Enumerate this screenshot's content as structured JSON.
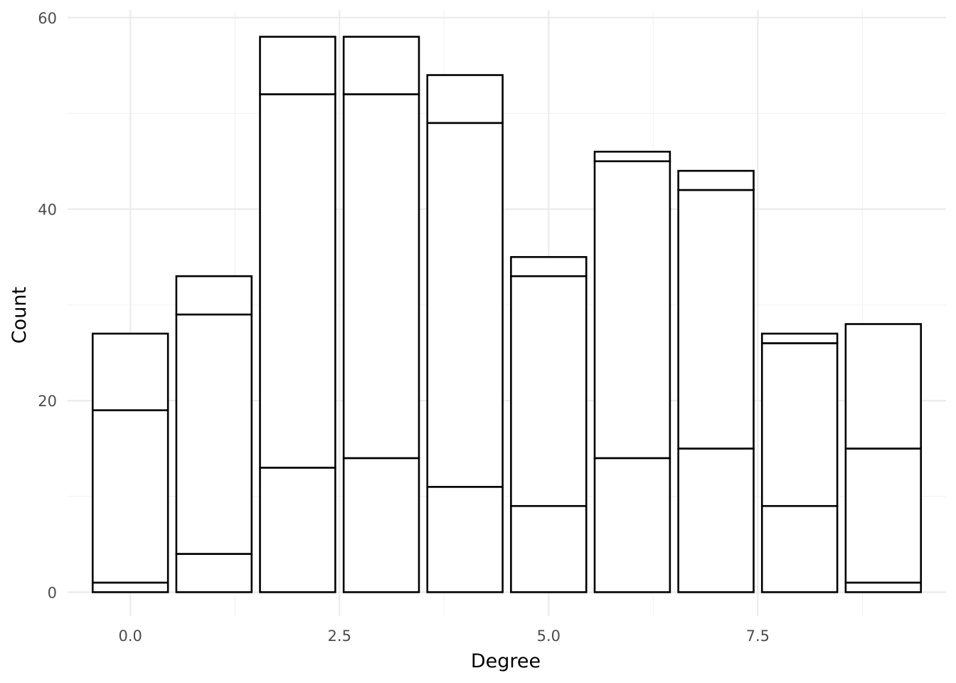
{
  "chart_data": {
    "type": "bar",
    "stacked": true,
    "title": "",
    "xlabel": "Degree",
    "ylabel": "Count",
    "x": [
      0,
      1,
      2,
      3,
      4,
      5,
      6,
      7,
      8,
      9
    ],
    "xlim": [
      -0.75,
      9.75
    ],
    "ylim": [
      -2.5,
      60.8
    ],
    "x_ticks": [
      0.0,
      2.5,
      5.0,
      7.5
    ],
    "x_tick_labels": [
      "0.0",
      "2.5",
      "5.0",
      "7.5"
    ],
    "x_minor_ticks": [
      1.25,
      3.75,
      6.25,
      8.75
    ],
    "y_ticks": [
      0,
      20,
      40,
      60
    ],
    "y_tick_labels": [
      "0",
      "20",
      "40",
      "60"
    ],
    "y_minor_ticks": [
      10,
      30,
      50
    ],
    "bar_width": 0.9,
    "grid": true,
    "legend": "none",
    "fill_color": "#ffffff",
    "outline_color": "#000000",
    "series": [
      {
        "values": [
          1,
          0,
          0,
          0,
          0,
          0,
          0,
          0,
          0,
          1
        ]
      },
      {
        "values": [
          0,
          4,
          13,
          14,
          11,
          9,
          14,
          15,
          9,
          0
        ]
      },
      {
        "values": [
          18,
          25,
          39,
          38,
          38,
          24,
          31,
          27,
          17,
          14
        ]
      },
      {
        "values": [
          8,
          4,
          6,
          6,
          5,
          2,
          1,
          2,
          1,
          13
        ]
      }
    ]
  }
}
